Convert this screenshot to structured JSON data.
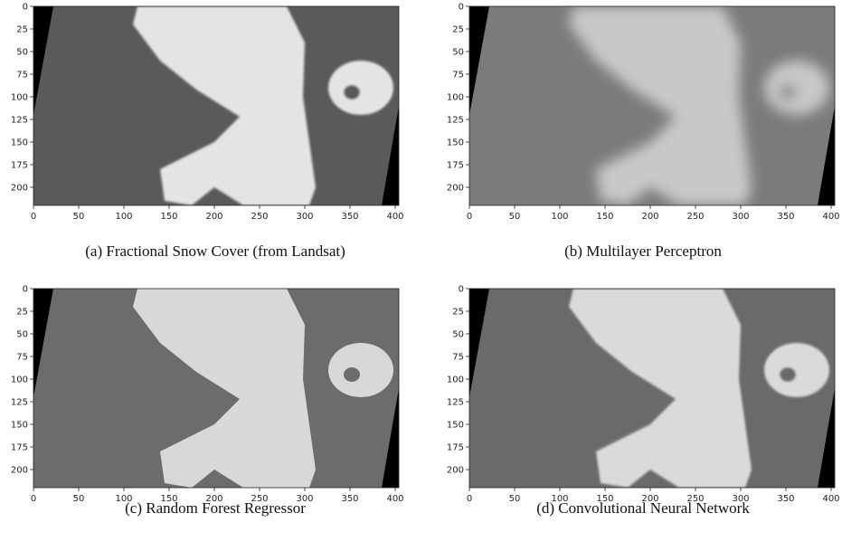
{
  "chart_data": [
    {
      "type": "image",
      "caption": "(a)  Fractional Snow Cover (from Landsat)",
      "xlim": [
        0,
        404
      ],
      "ylim": [
        220,
        0
      ],
      "xticks": [
        0,
        50,
        100,
        150,
        200,
        250,
        300,
        350,
        400
      ],
      "yticks": [
        0,
        25,
        50,
        75,
        100,
        125,
        150,
        175,
        200
      ]
    },
    {
      "type": "image",
      "caption": "(b)  Multilayer Perceptron",
      "xlim": [
        0,
        404
      ],
      "ylim": [
        220,
        0
      ],
      "xticks": [
        0,
        50,
        100,
        150,
        200,
        250,
        300,
        350,
        400
      ],
      "yticks": [
        0,
        25,
        50,
        75,
        100,
        125,
        150,
        175,
        200
      ]
    },
    {
      "type": "image",
      "caption": "(c)  Random Forest Regressor",
      "xlim": [
        0,
        404
      ],
      "ylim": [
        220,
        0
      ],
      "xticks": [
        0,
        50,
        100,
        150,
        200,
        250,
        300,
        350,
        400
      ],
      "yticks": [
        0,
        25,
        50,
        75,
        100,
        125,
        150,
        175,
        200
      ]
    },
    {
      "type": "image",
      "caption": "(d)  Convolutional Neural Network",
      "xlim": [
        0,
        404
      ],
      "ylim": [
        220,
        0
      ],
      "xticks": [
        0,
        50,
        100,
        150,
        200,
        250,
        300,
        350,
        400
      ],
      "yticks": [
        0,
        25,
        50,
        75,
        100,
        125,
        150,
        175,
        200
      ]
    }
  ]
}
